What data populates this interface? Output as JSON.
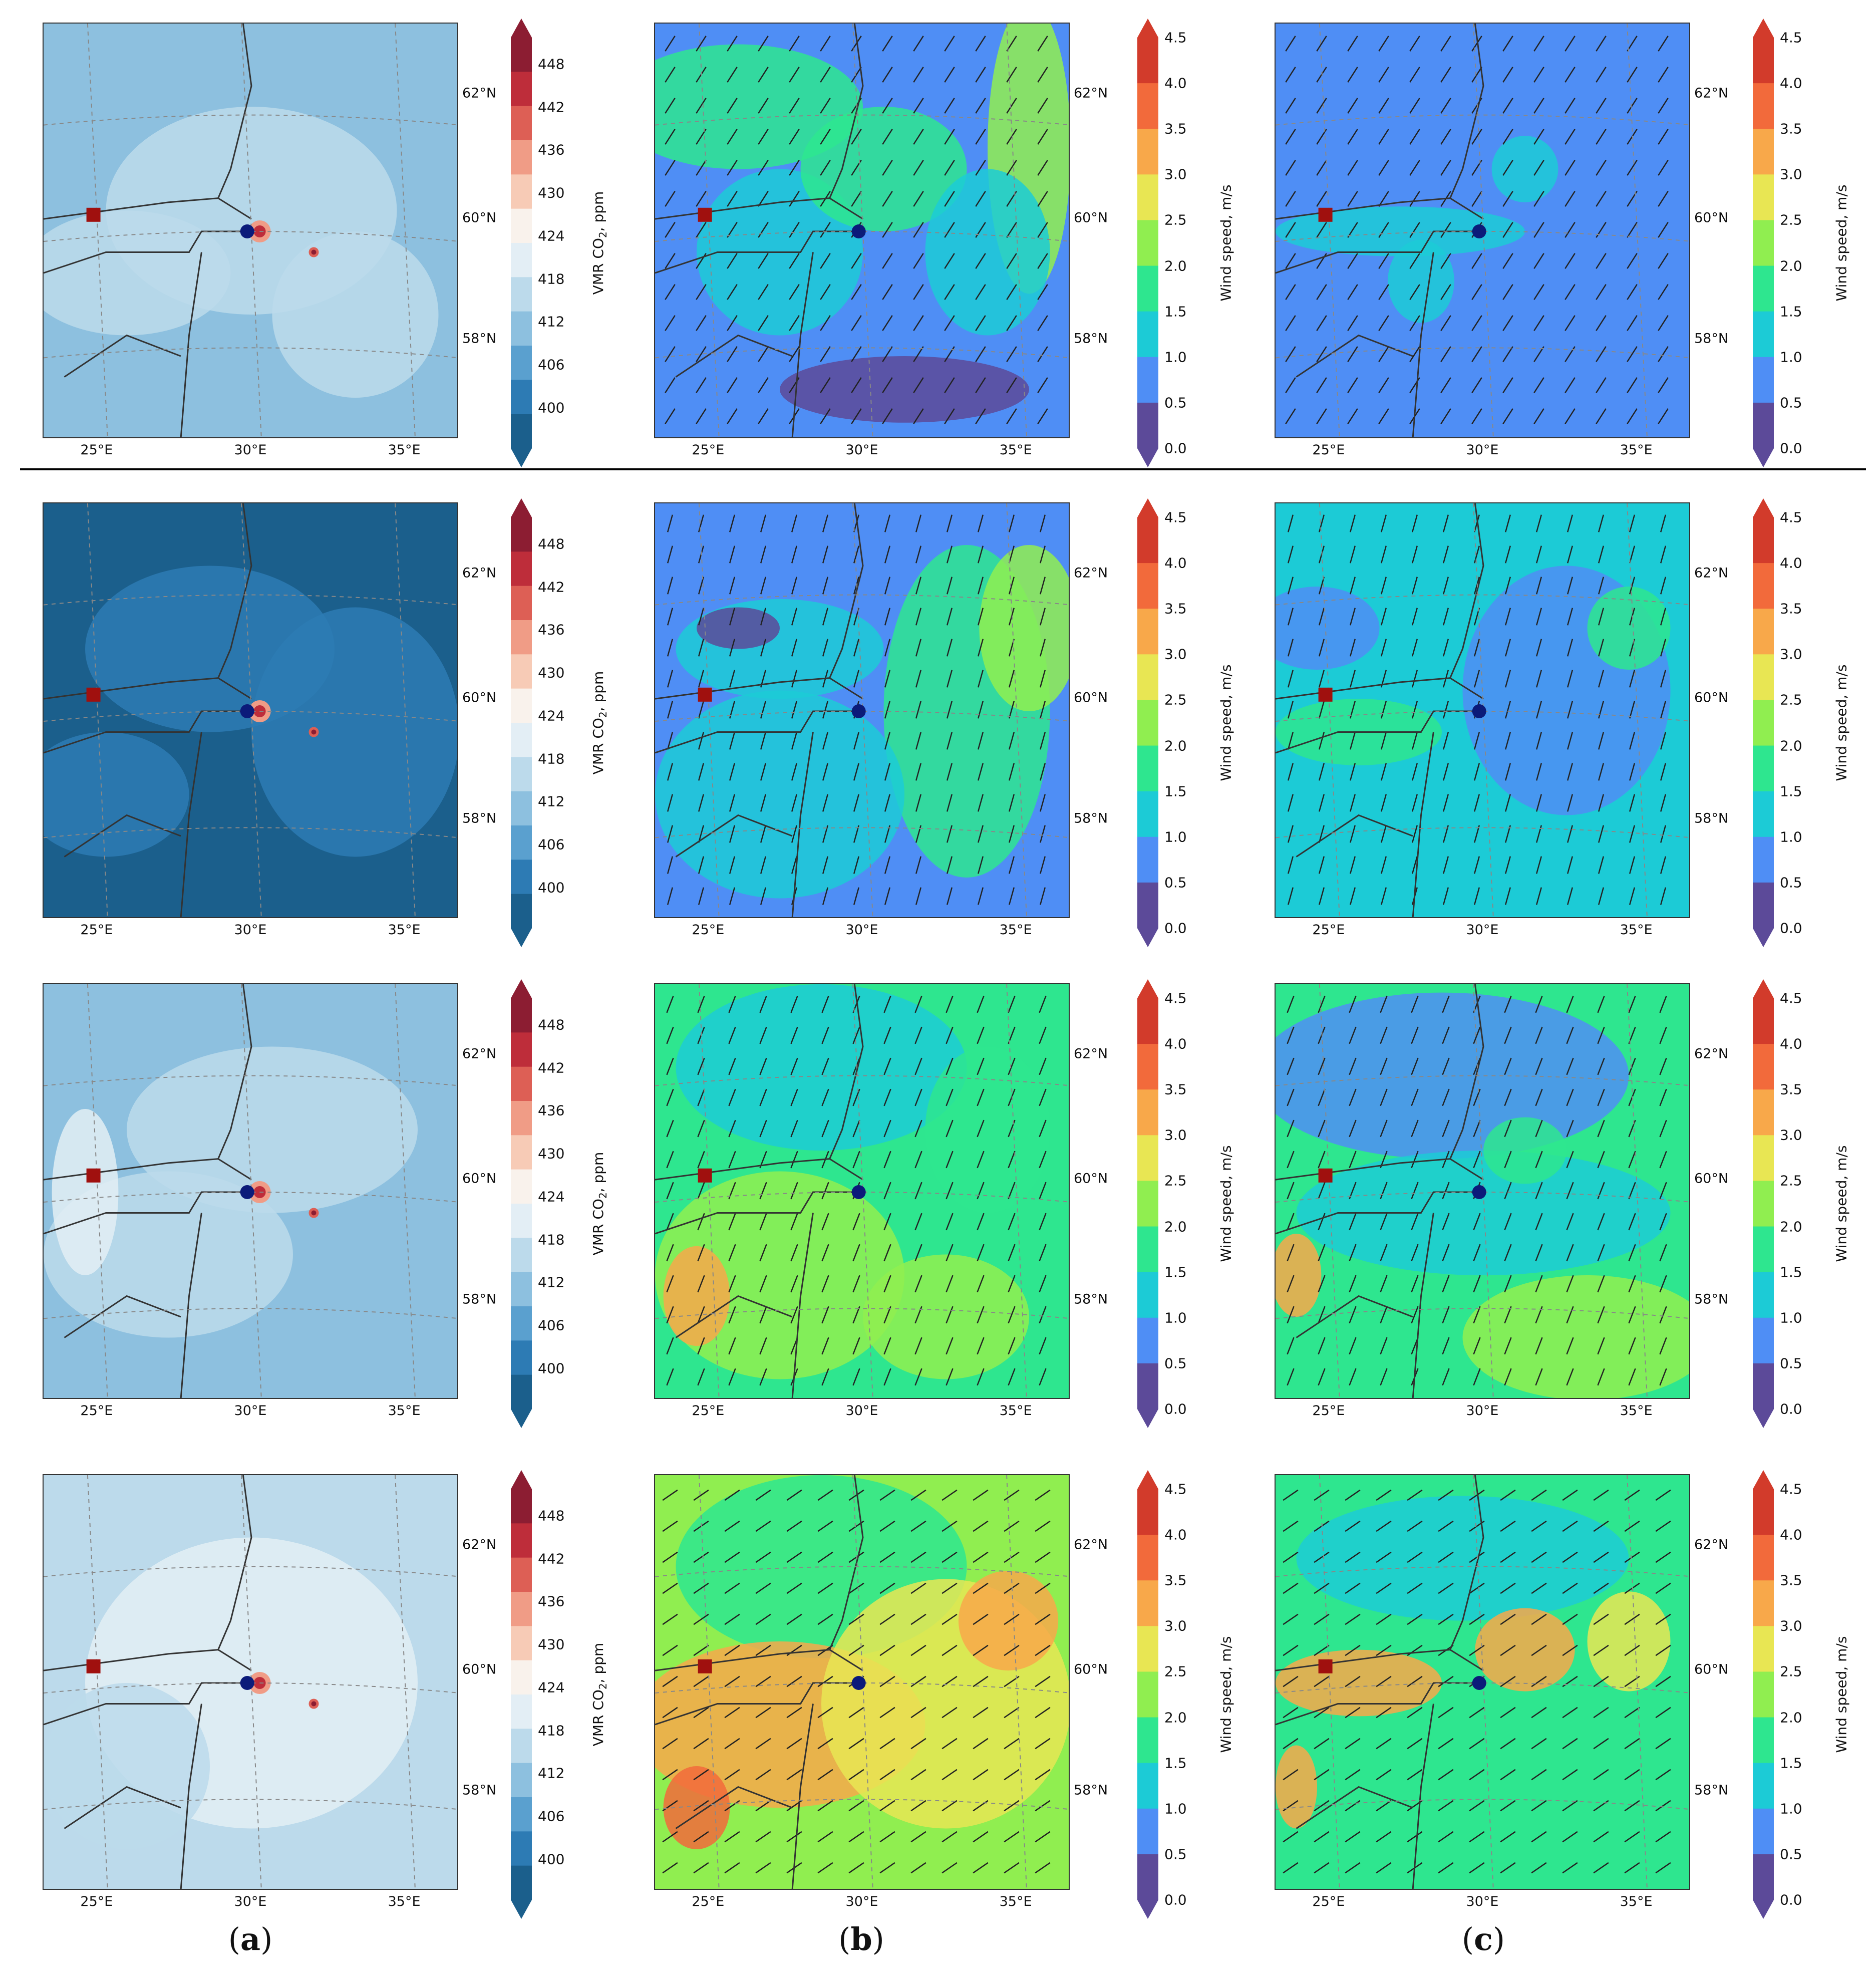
{
  "columns": [
    {
      "label_open": "(",
      "label_letter": "a",
      "label_close": ")",
      "colorbar": {
        "label_main": "VMR CO",
        "label_sub": "2",
        "label_tail": ", ppm",
        "ticks": [
          "448",
          "442",
          "436",
          "430",
          "424",
          "418",
          "412",
          "406",
          "400"
        ]
      }
    },
    {
      "label_open": "(",
      "label_letter": "b",
      "label_close": ")",
      "colorbar": {
        "label": "Wind speed, m/s",
        "ticks": [
          "4.5",
          "4.0",
          "3.5",
          "3.0",
          "2.5",
          "2.0",
          "1.5",
          "1.0",
          "0.5",
          "0.0"
        ]
      }
    },
    {
      "label_open": "(",
      "label_letter": "c",
      "label_close": ")",
      "colorbar": {
        "label": "Wind speed, m/s",
        "ticks": [
          "4.5",
          "4.0",
          "3.5",
          "3.0",
          "2.5",
          "2.0",
          "1.5",
          "1.0",
          "0.5",
          "0.0"
        ]
      }
    }
  ],
  "lon_ticks": [
    "25°E",
    "30°E",
    "35°E"
  ],
  "lat_ticks": [
    "62°N",
    "60°N",
    "58°N"
  ],
  "colors": {
    "co2_scale": [
      "#1b5f8c",
      "#2d7bb4",
      "#5aa0cf",
      "#8dc0df",
      "#bcdaeb",
      "#e3eef5",
      "#f9f2ec",
      "#f7cbb6",
      "#f09c86",
      "#dd5f55",
      "#be2d3a",
      "#8c1d32"
    ],
    "wind_scale": [
      "#5c4a99",
      "#4f8ef5",
      "#1ccbd6",
      "#2ee68f",
      "#90ee50",
      "#e8e653",
      "#f8a84a",
      "#f26a3b",
      "#d23b2b"
    ],
    "marker_square": "#a0100e",
    "marker_dot": "#0b1b7a"
  }
}
